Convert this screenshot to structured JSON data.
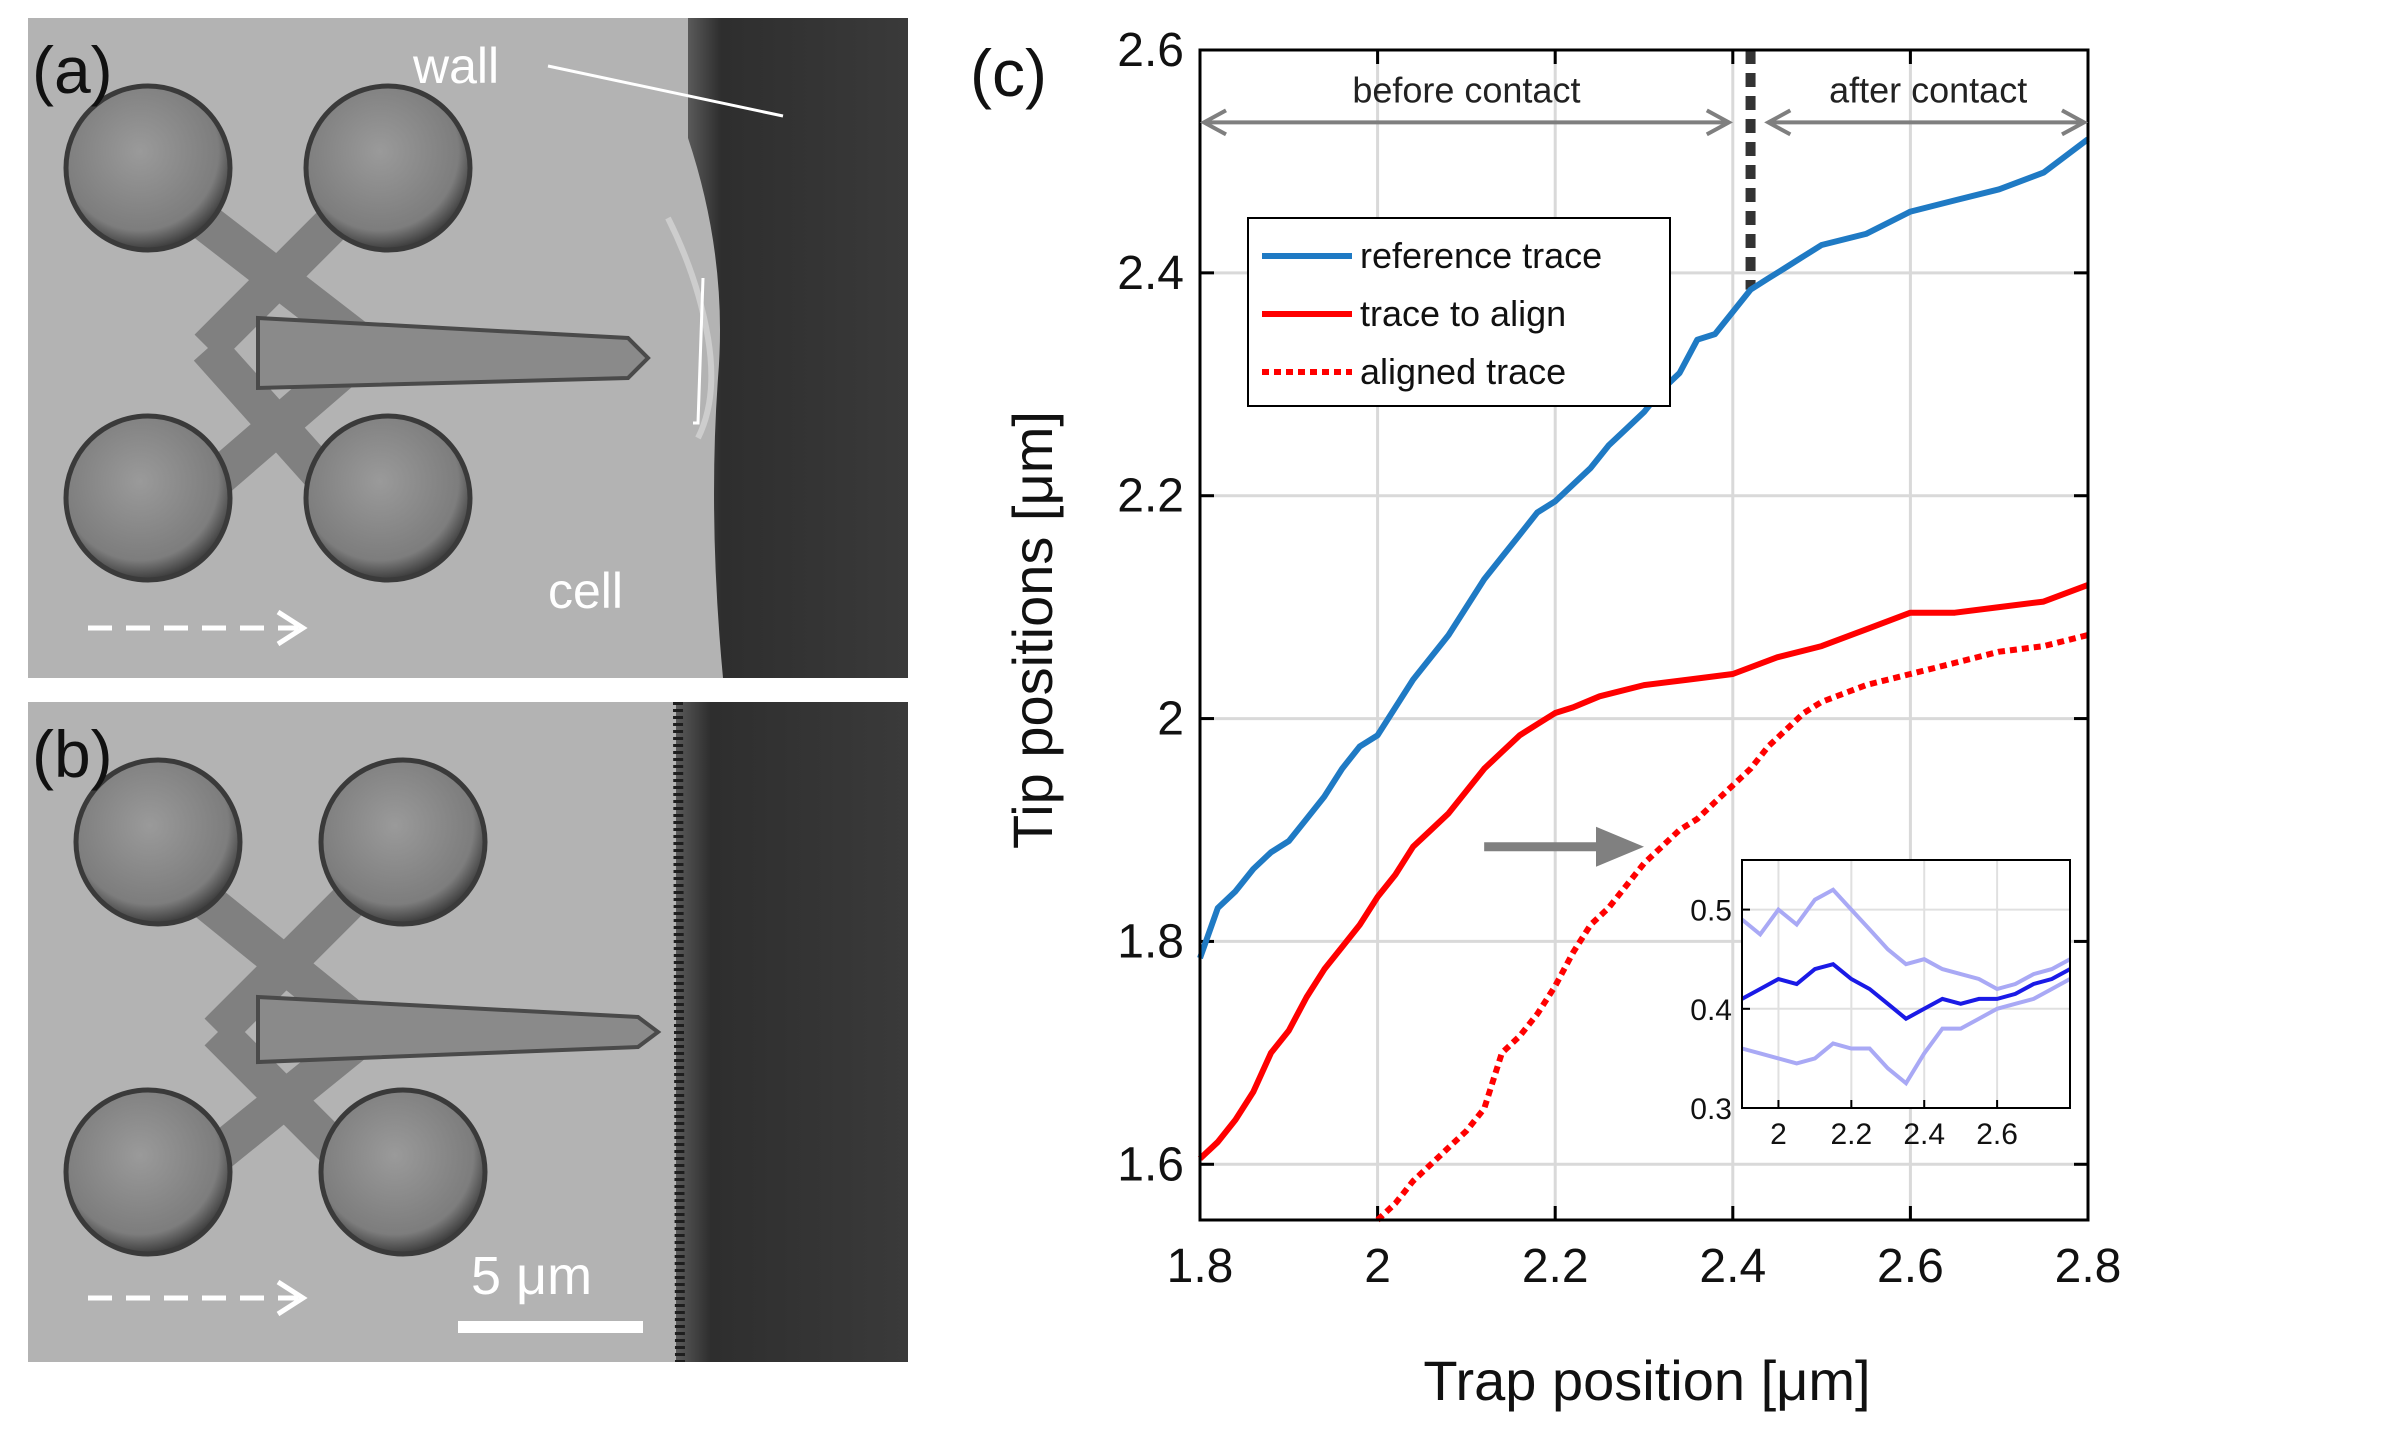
{
  "panels": {
    "a": {
      "label": "(a)",
      "wall_label": "wall",
      "cell_label": "cell"
    },
    "b": {
      "label": "(b)",
      "scale_label": "5 μm"
    }
  },
  "colors": {
    "reference": "#1f7ac4",
    "to_align": "#ff0000",
    "aligned": "#ff0000",
    "inset_mean": "#1a1ae6",
    "inset_band": "#a9a9f5",
    "arrow": "#808080"
  },
  "chart_data": {
    "type": "line",
    "panel_label": "(c)",
    "xlabel": "Trap position [μm]",
    "ylabel": "Tip positions [μm]",
    "xlim": [
      1.8,
      2.8
    ],
    "ylim": [
      1.55,
      2.6
    ],
    "xticks": [
      1.8,
      2.0,
      2.2,
      2.4,
      2.6,
      2.8
    ],
    "xtick_labels": [
      "1.8",
      "2",
      "2.2",
      "2.4",
      "2.6",
      "2.8"
    ],
    "yticks": [
      1.6,
      1.8,
      2.0,
      2.2,
      2.4,
      2.6
    ],
    "ytick_labels": [
      "1.6",
      "1.8",
      "2",
      "2.2",
      "2.4",
      "2.6"
    ],
    "grid": true,
    "legend_location": "upper-left",
    "contact_x": 2.42,
    "annotations": {
      "before": "before contact",
      "after": "after contact"
    },
    "shift_arrow": {
      "from": [
        2.12,
        1.885
      ],
      "to": [
        2.3,
        1.885
      ]
    },
    "series": [
      {
        "name": "reference trace",
        "style": "solid",
        "color_key": "reference",
        "x": [
          1.8,
          1.82,
          1.84,
          1.86,
          1.88,
          1.9,
          1.92,
          1.94,
          1.96,
          1.98,
          2.0,
          2.02,
          2.04,
          2.06,
          2.08,
          2.1,
          2.12,
          2.14,
          2.16,
          2.18,
          2.2,
          2.22,
          2.24,
          2.26,
          2.28,
          2.3,
          2.32,
          2.34,
          2.36,
          2.38,
          2.4,
          2.42,
          2.44,
          2.46,
          2.48,
          2.5,
          2.55,
          2.6,
          2.65,
          2.7,
          2.75,
          2.8
        ],
        "y": [
          1.785,
          1.83,
          1.845,
          1.865,
          1.88,
          1.89,
          1.91,
          1.93,
          1.955,
          1.975,
          1.985,
          2.01,
          2.035,
          2.055,
          2.075,
          2.1,
          2.125,
          2.145,
          2.165,
          2.185,
          2.195,
          2.21,
          2.225,
          2.245,
          2.26,
          2.275,
          2.295,
          2.31,
          2.34,
          2.345,
          2.365,
          2.385,
          2.395,
          2.405,
          2.415,
          2.425,
          2.435,
          2.455,
          2.465,
          2.475,
          2.49,
          2.52
        ]
      },
      {
        "name": "trace to align",
        "style": "solid",
        "color_key": "to_align",
        "x": [
          1.8,
          1.82,
          1.84,
          1.86,
          1.88,
          1.9,
          1.92,
          1.94,
          1.96,
          1.98,
          2.0,
          2.02,
          2.04,
          2.06,
          2.08,
          2.1,
          2.12,
          2.14,
          2.16,
          2.18,
          2.2,
          2.22,
          2.25,
          2.3,
          2.35,
          2.4,
          2.45,
          2.5,
          2.55,
          2.6,
          2.65,
          2.7,
          2.75,
          2.8
        ],
        "y": [
          1.605,
          1.62,
          1.64,
          1.665,
          1.7,
          1.72,
          1.75,
          1.775,
          1.795,
          1.815,
          1.84,
          1.86,
          1.885,
          1.9,
          1.915,
          1.935,
          1.955,
          1.97,
          1.985,
          1.995,
          2.005,
          2.01,
          2.02,
          2.03,
          2.035,
          2.04,
          2.055,
          2.065,
          2.08,
          2.095,
          2.095,
          2.1,
          2.105,
          2.12
        ]
      },
      {
        "name": "aligned trace",
        "style": "dotted",
        "color_key": "aligned",
        "x": [
          2.0,
          2.02,
          2.04,
          2.06,
          2.08,
          2.1,
          2.12,
          2.14,
          2.16,
          2.18,
          2.2,
          2.22,
          2.24,
          2.26,
          2.28,
          2.3,
          2.32,
          2.34,
          2.36,
          2.38,
          2.4,
          2.42,
          2.44,
          2.46,
          2.48,
          2.5,
          2.55,
          2.6,
          2.65,
          2.7,
          2.75,
          2.8
        ],
        "y": [
          1.55,
          1.565,
          1.585,
          1.6,
          1.615,
          1.63,
          1.65,
          1.7,
          1.715,
          1.735,
          1.76,
          1.79,
          1.815,
          1.83,
          1.85,
          1.87,
          1.885,
          1.9,
          1.91,
          1.925,
          1.94,
          1.955,
          1.975,
          1.99,
          2.005,
          2.015,
          2.03,
          2.04,
          2.05,
          2.06,
          2.065,
          2.075
        ]
      }
    ],
    "inset": {
      "xlim": [
        1.9,
        2.8
      ],
      "ylim": [
        0.3,
        0.55
      ],
      "xticks": [
        2.0,
        2.2,
        2.4,
        2.6
      ],
      "xtick_labels": [
        "2",
        "2.2",
        "2.4",
        "2.6"
      ],
      "yticks": [
        0.3,
        0.4,
        0.5
      ],
      "ytick_labels": [
        "0.3",
        "0.4",
        "0.5"
      ],
      "x": [
        1.9,
        1.95,
        2.0,
        2.05,
        2.1,
        2.15,
        2.2,
        2.25,
        2.3,
        2.35,
        2.4,
        2.45,
        2.5,
        2.55,
        2.6,
        2.65,
        2.7,
        2.75,
        2.8
      ],
      "mean": [
        0.41,
        0.42,
        0.43,
        0.425,
        0.44,
        0.445,
        0.43,
        0.42,
        0.405,
        0.39,
        0.4,
        0.41,
        0.405,
        0.41,
        0.41,
        0.415,
        0.425,
        0.43,
        0.44
      ],
      "upper": [
        0.49,
        0.475,
        0.5,
        0.485,
        0.51,
        0.52,
        0.5,
        0.48,
        0.46,
        0.445,
        0.45,
        0.44,
        0.435,
        0.43,
        0.42,
        0.425,
        0.435,
        0.44,
        0.45
      ],
      "lower": [
        0.36,
        0.355,
        0.35,
        0.345,
        0.35,
        0.365,
        0.36,
        0.36,
        0.34,
        0.325,
        0.355,
        0.38,
        0.38,
        0.39,
        0.4,
        0.405,
        0.41,
        0.42,
        0.43
      ]
    }
  }
}
